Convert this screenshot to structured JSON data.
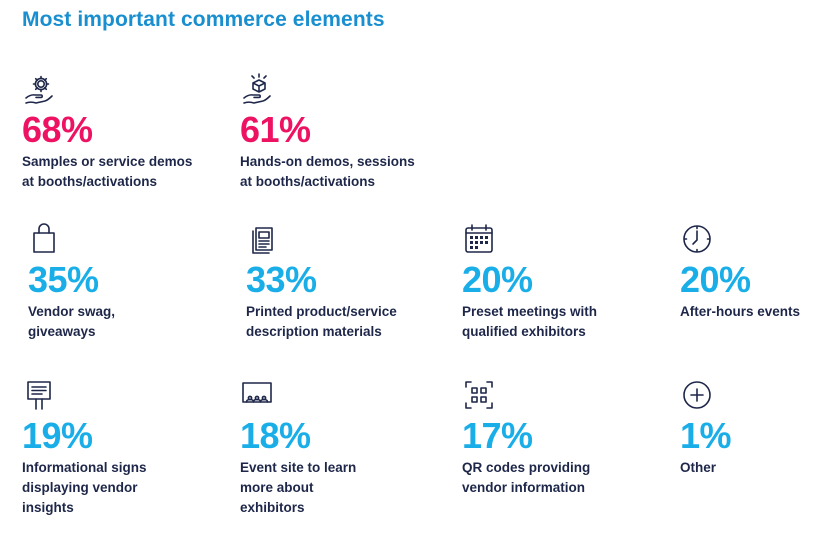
{
  "title": "Most important commerce elements",
  "colors": {
    "title": "#1a8fcf",
    "highlight": "#ee1262",
    "standard": "#1aaee8",
    "text": "#1e2749"
  },
  "chart_data": {
    "type": "table",
    "title": "Most important commerce elements",
    "items": [
      {
        "value": 68,
        "label": "68%",
        "text": "Samples or service demos\nat booths/activations",
        "icon": "gear-hand-icon",
        "highlight": true
      },
      {
        "value": 61,
        "label": "61%",
        "text": "Hands-on demos, sessions\nat booths/activations",
        "icon": "box-hand-icon",
        "highlight": true
      },
      {
        "value": 35,
        "label": "35%",
        "text": "Vendor swag,\ngiveaways",
        "icon": "shopping-bag-icon",
        "highlight": false
      },
      {
        "value": 33,
        "label": "33%",
        "text": "Printed product/service\ndescription materials",
        "icon": "printed-pages-icon",
        "highlight": false
      },
      {
        "value": 20,
        "label": "20%",
        "text": "Preset meetings with\nqualified exhibitors",
        "icon": "calendar-icon",
        "highlight": false
      },
      {
        "value": 20,
        "label": "20%",
        "text": "After-hours events",
        "icon": "clock-icon",
        "highlight": false
      },
      {
        "value": 19,
        "label": "19%",
        "text": "Informational signs\ndisplaying vendor\ninsights",
        "icon": "signboard-icon",
        "highlight": false
      },
      {
        "value": 18,
        "label": "18%",
        "text": "Event site to learn\nmore about\nexhibitors",
        "icon": "presentation-screen-icon",
        "highlight": false
      },
      {
        "value": 17,
        "label": "17%",
        "text": "QR codes providing\nvendor information",
        "icon": "qr-code-icon",
        "highlight": false
      },
      {
        "value": 1,
        "label": "1%",
        "text": "Other",
        "icon": "plus-circle-icon",
        "highlight": false
      }
    ]
  }
}
